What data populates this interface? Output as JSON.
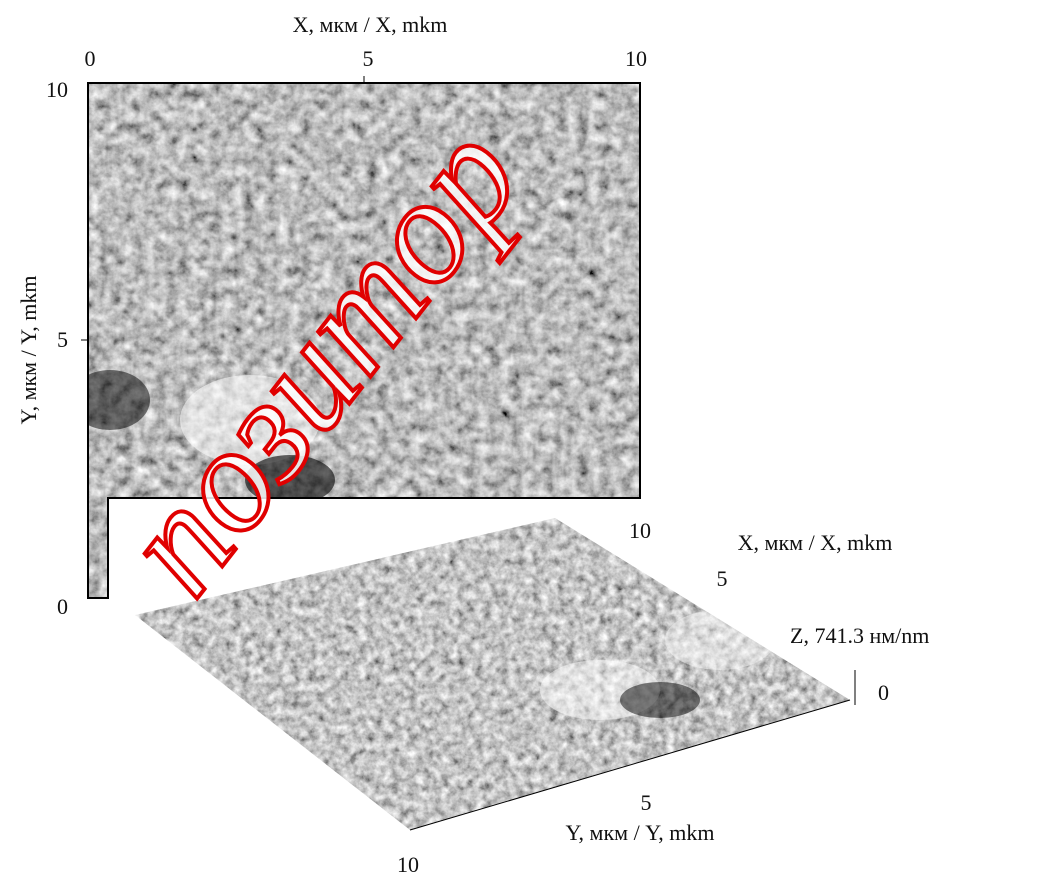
{
  "top_view": {
    "x_axis": {
      "label": "X, мкм / X, mkm",
      "ticks": [
        "0",
        "5",
        "10"
      ]
    },
    "y_axis": {
      "label": "Y, мкм / Y, mkm",
      "ticks": [
        "10",
        "5",
        "0"
      ]
    }
  },
  "surface_3d": {
    "x_axis": {
      "label": "X, мкм / X, mkm",
      "ticks": [
        "10",
        "5"
      ]
    },
    "y_axis": {
      "label": "Y, мкм / Y, mkm",
      "ticks": [
        "5",
        "10"
      ]
    },
    "z_axis": {
      "label": "Z, 741.3 нм/nm",
      "tick": "0"
    }
  },
  "watermark": "позитор"
}
